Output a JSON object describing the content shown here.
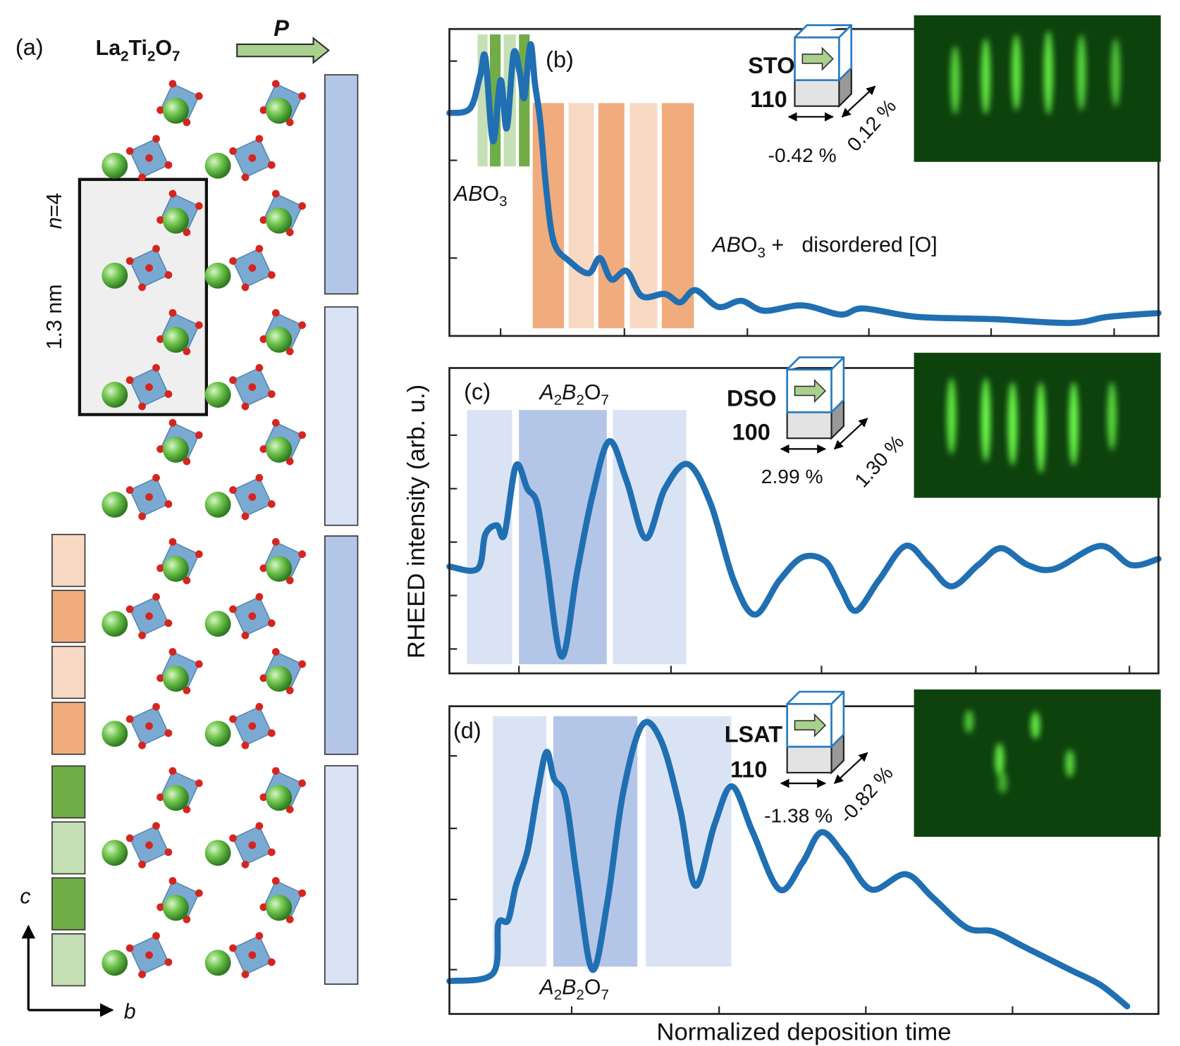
{
  "panel_a": {
    "label": "(a)",
    "formula": [
      "La",
      "2",
      "Ti",
      "2",
      "O",
      "7"
    ],
    "polarization": "P",
    "n_label": [
      "n",
      "=4"
    ],
    "thickness": "1.3 nm",
    "axis_c": "c",
    "axis_b": "b"
  },
  "panels": [
    {
      "label": "(b)",
      "film_label": [
        "AB",
        "O",
        "3"
      ],
      "annotation": [
        "AB",
        "O",
        "3",
        " +   disordered [O]"
      ],
      "substrate": "STO",
      "orientation": "110",
      "strain_x": "-0.42 %",
      "strain_y": "0.12 %"
    },
    {
      "label": "(c)",
      "film_label": [
        "A",
        "2",
        "B",
        "2",
        "O",
        "7"
      ],
      "substrate": "DSO",
      "orientation": "100",
      "strain_x": "2.99 %",
      "strain_y": "1.30 %"
    },
    {
      "label": "(d)",
      "film_label": [
        "A",
        "2",
        "B",
        "2",
        "O",
        "7"
      ],
      "substrate": "LSAT",
      "orientation": "110",
      "strain_x": "-1.38 %",
      "strain_y": "-0.82 %"
    }
  ],
  "y_axis_label": "RHEED intensity (arb. u.)",
  "x_axis_label": "Normalized deposition time"
}
